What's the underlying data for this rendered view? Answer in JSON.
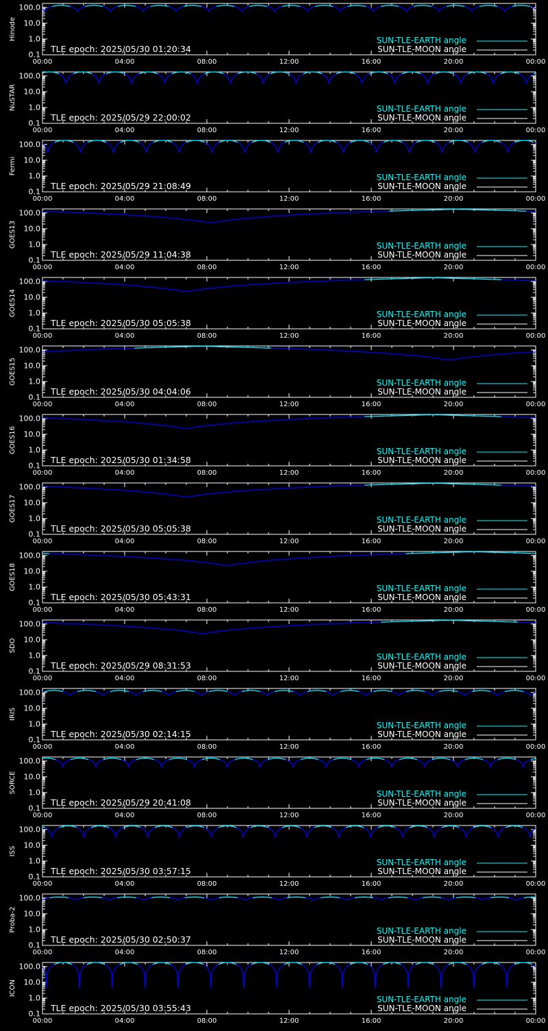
{
  "colors": {
    "background": "#000000",
    "axes": "#ffffff",
    "earth_series": "#00ffff",
    "blue_series": "#0000ff",
    "moon_series": "#ffffff"
  },
  "legend": {
    "earth_label": "SUN-TLE-EARTH angle",
    "moon_label": "SUN-TLE-MOON angle"
  },
  "chart_data": [
    {
      "type": "line",
      "ylabel": "Hinode",
      "epoch_label": "TLE epoch: 2025/05/30 01:20:34",
      "yscale": "log",
      "ylim": [
        0.1,
        180
      ],
      "yticks": [
        "0.1",
        "1.0",
        "10.0",
        "100.0"
      ],
      "xlim": [
        0,
        24
      ],
      "xticks": [
        "00:00",
        "04:00",
        "08:00",
        "12:00",
        "16:00",
        "20:00",
        "00:00"
      ],
      "series": [
        {
          "name": "SUN-TLE-EARTH angle",
          "model": "orbit",
          "period_h": 1.6,
          "phase_h": 0.9,
          "min_value": 55,
          "max_value": 135
        }
      ]
    },
    {
      "type": "line",
      "ylabel": "NuSTAR",
      "epoch_label": "TLE epoch: 2025/05/29 22:00:02",
      "yscale": "log",
      "ylim": [
        0.1,
        180
      ],
      "yticks": [
        "0.1",
        "1.0",
        "10.0",
        "100.0"
      ],
      "xlim": [
        0,
        24
      ],
      "xticks": [
        "00:00",
        "04:00",
        "08:00",
        "12:00",
        "16:00",
        "20:00",
        "00:00"
      ],
      "series": [
        {
          "name": "SUN-TLE-EARTH angle",
          "model": "orbit",
          "period_h": 1.6,
          "phase_h": 0.35,
          "min_value": 20,
          "max_value": 180
        }
      ]
    },
    {
      "type": "line",
      "ylabel": "Fermi",
      "epoch_label": "TLE epoch: 2025/05/29 21:08:49",
      "yscale": "log",
      "ylim": [
        0.1,
        180
      ],
      "yticks": [
        "0.1",
        "1.0",
        "10.0",
        "100.0"
      ],
      "xlim": [
        0,
        24
      ],
      "xticks": [
        "00:00",
        "04:00",
        "08:00",
        "12:00",
        "16:00",
        "20:00",
        "00:00"
      ],
      "series": [
        {
          "name": "SUN-TLE-EARTH angle",
          "model": "orbit",
          "period_h": 1.6,
          "phase_h": 1.05,
          "min_value": 17,
          "max_value": 180
        }
      ]
    },
    {
      "type": "line",
      "ylabel": "GOES13",
      "epoch_label": "TLE epoch: 2025/05/29 11:04:38",
      "yscale": "log",
      "ylim": [
        0.1,
        180
      ],
      "yticks": [
        "0.1",
        "1.0",
        "10.0",
        "100.0"
      ],
      "xlim": [
        0,
        24
      ],
      "xticks": [
        "00:00",
        "04:00",
        "08:00",
        "12:00",
        "16:00",
        "20:00",
        "00:00"
      ],
      "series": [
        {
          "name": "SUN-TLE-EARTH angle",
          "model": "geo",
          "min_time_h": 8.2,
          "min_value": 23,
          "max_value": 172
        }
      ]
    },
    {
      "type": "line",
      "ylabel": "GOES14",
      "epoch_label": "TLE epoch: 2025/05/30 05:05:38",
      "yscale": "log",
      "ylim": [
        0.1,
        180
      ],
      "yticks": [
        "0.1",
        "1.0",
        "10.0",
        "100.0"
      ],
      "xlim": [
        0,
        24
      ],
      "xticks": [
        "00:00",
        "04:00",
        "08:00",
        "12:00",
        "16:00",
        "20:00",
        "00:00"
      ],
      "series": [
        {
          "name": "SUN-TLE-EARTH angle",
          "model": "geo",
          "min_time_h": 7.0,
          "min_value": 22,
          "max_value": 172
        }
      ]
    },
    {
      "type": "line",
      "ylabel": "GOES15",
      "epoch_label": "TLE epoch: 2025/05/30 04:04:06",
      "yscale": "log",
      "ylim": [
        0.1,
        180
      ],
      "yticks": [
        "0.1",
        "1.0",
        "10.0",
        "100.0"
      ],
      "xlim": [
        0,
        24
      ],
      "xticks": [
        "00:00",
        "04:00",
        "08:00",
        "12:00",
        "16:00",
        "20:00",
        "00:00"
      ],
      "series": [
        {
          "name": "SUN-TLE-EARTH angle",
          "model": "geo",
          "min_time_h": 19.8,
          "min_value": 22,
          "max_value": 172
        }
      ]
    },
    {
      "type": "line",
      "ylabel": "GOES16",
      "epoch_label": "TLE epoch: 2025/05/30 01:34:58",
      "yscale": "log",
      "ylim": [
        0.1,
        180
      ],
      "yticks": [
        "0.1",
        "1.0",
        "10.0",
        "100.0"
      ],
      "xlim": [
        0,
        24
      ],
      "xticks": [
        "00:00",
        "04:00",
        "08:00",
        "12:00",
        "16:00",
        "20:00",
        "00:00"
      ],
      "series": [
        {
          "name": "SUN-TLE-EARTH angle",
          "model": "geo",
          "min_time_h": 7.0,
          "min_value": 22,
          "max_value": 172
        }
      ]
    },
    {
      "type": "line",
      "ylabel": "GOES17",
      "epoch_label": "TLE epoch: 2025/05/30 05:05:38",
      "yscale": "log",
      "ylim": [
        0.1,
        180
      ],
      "yticks": [
        "0.1",
        "1.0",
        "10.0",
        "100.0"
      ],
      "xlim": [
        0,
        24
      ],
      "xticks": [
        "00:00",
        "04:00",
        "08:00",
        "12:00",
        "16:00",
        "20:00",
        "00:00"
      ],
      "series": [
        {
          "name": "SUN-TLE-EARTH angle",
          "model": "geo",
          "min_time_h": 7.0,
          "min_value": 22,
          "max_value": 172
        }
      ]
    },
    {
      "type": "line",
      "ylabel": "GOES18",
      "epoch_label": "TLE epoch: 2025/05/30 05:43:31",
      "yscale": "log",
      "ylim": [
        0.1,
        180
      ],
      "yticks": [
        "0.1",
        "1.0",
        "10.0",
        "100.0"
      ],
      "xlim": [
        0,
        24
      ],
      "xticks": [
        "00:00",
        "04:00",
        "08:00",
        "12:00",
        "16:00",
        "20:00",
        "00:00"
      ],
      "series": [
        {
          "name": "SUN-TLE-EARTH angle",
          "model": "geo",
          "min_time_h": 9.0,
          "min_value": 22,
          "max_value": 172
        }
      ]
    },
    {
      "type": "line",
      "ylabel": "SDO",
      "epoch_label": "TLE epoch: 2025/05/29 08:31:53",
      "yscale": "log",
      "ylim": [
        0.1,
        180
      ],
      "yticks": [
        "0.1",
        "1.0",
        "10.0",
        "100.0"
      ],
      "xlim": [
        0,
        24
      ],
      "xticks": [
        "00:00",
        "04:00",
        "08:00",
        "12:00",
        "16:00",
        "20:00",
        "00:00"
      ],
      "series": [
        {
          "name": "SUN-TLE-EARTH angle",
          "model": "geo",
          "min_time_h": 7.8,
          "min_value": 24,
          "max_value": 172
        }
      ]
    },
    {
      "type": "line",
      "ylabel": "IRIS",
      "epoch_label": "TLE epoch: 2025/05/30 02:14:15",
      "yscale": "log",
      "ylim": [
        0.1,
        180
      ],
      "yticks": [
        "0.1",
        "1.0",
        "10.0",
        "100.0"
      ],
      "xlim": [
        0,
        24
      ],
      "xticks": [
        "00:00",
        "04:00",
        "08:00",
        "12:00",
        "16:00",
        "20:00",
        "00:00"
      ],
      "series": [
        {
          "name": "SUN-TLE-EARTH angle",
          "model": "orbit",
          "period_h": 1.6,
          "phase_h": 0.55,
          "min_value": 58,
          "max_value": 135
        }
      ]
    },
    {
      "type": "line",
      "ylabel": "SORCE",
      "epoch_label": "TLE epoch: 2025/05/29 20:41:08",
      "yscale": "log",
      "ylim": [
        0.1,
        180
      ],
      "yticks": [
        "0.1",
        "1.0",
        "10.0",
        "100.0"
      ],
      "xlim": [
        0,
        24
      ],
      "xticks": [
        "00:00",
        "04:00",
        "08:00",
        "12:00",
        "16:00",
        "20:00",
        "00:00"
      ],
      "series": [
        {
          "name": "SUN-TLE-EARTH angle",
          "model": "orbit",
          "period_h": 1.6,
          "phase_h": 0.2,
          "min_value": 40,
          "max_value": 150
        }
      ]
    },
    {
      "type": "line",
      "ylabel": "ISS",
      "epoch_label": "TLE epoch: 2025/05/30 03:57:15",
      "yscale": "log",
      "ylim": [
        0.1,
        180
      ],
      "yticks": [
        "0.1",
        "1.0",
        "10.0",
        "100.0"
      ],
      "xlim": [
        0,
        24
      ],
      "xticks": [
        "00:00",
        "04:00",
        "08:00",
        "12:00",
        "16:00",
        "20:00",
        "00:00"
      ],
      "series": [
        {
          "name": "SUN-TLE-EARTH angle",
          "model": "orbit",
          "period_h": 1.55,
          "phase_h": 1.25,
          "min_value": 25,
          "max_value": 170
        }
      ]
    },
    {
      "type": "line",
      "ylabel": "Proba-2",
      "epoch_label": "TLE epoch: 2025/05/30 02:50:37",
      "yscale": "log",
      "ylim": [
        0.1,
        180
      ],
      "yticks": [
        "0.1",
        "1.0",
        "10.0",
        "100.0"
      ],
      "xlim": [
        0,
        24
      ],
      "xticks": [
        "00:00",
        "04:00",
        "08:00",
        "12:00",
        "16:00",
        "20:00",
        "00:00"
      ],
      "series": [
        {
          "name": "SUN-TLE-EARTH angle",
          "model": "orbit",
          "period_h": 1.65,
          "phase_h": 0.8,
          "min_value": 70,
          "max_value": 115
        }
      ]
    },
    {
      "type": "line",
      "ylabel": "ICON",
      "epoch_label": "TLE epoch: 2025/05/30 03:55:43",
      "yscale": "log",
      "ylim": [
        0.1,
        180
      ],
      "yticks": [
        "0.1",
        "1.0",
        "10.0",
        "100.0"
      ],
      "xlim": [
        0,
        24
      ],
      "xticks": [
        "00:00",
        "04:00",
        "08:00",
        "12:00",
        "16:00",
        "20:00",
        "00:00"
      ],
      "series": [
        {
          "name": "SUN-TLE-EARTH angle",
          "model": "orbit",
          "period_h": 1.6,
          "phase_h": 1.0,
          "min_value": 4,
          "max_value": 178
        }
      ]
    }
  ]
}
